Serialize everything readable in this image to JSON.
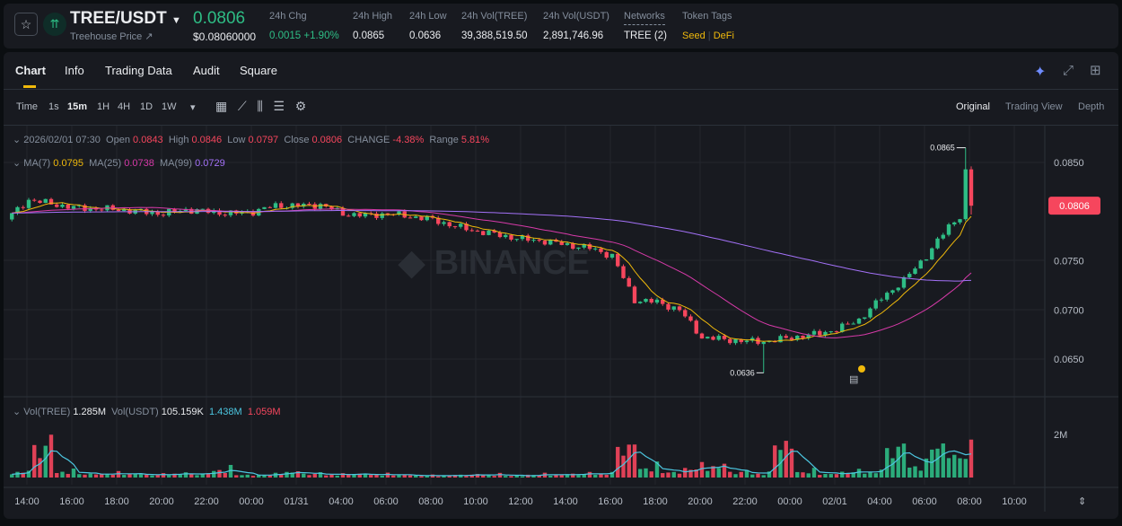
{
  "header": {
    "pair": "TREE/USDT",
    "subtitle": "Treehouse Price ↗",
    "price": "0.0806",
    "price_usd": "$0.08060000",
    "stats": [
      {
        "label": "24h Chg",
        "value": "0.0015 +1.90%",
        "color": "#2ebd85"
      },
      {
        "label": "24h High",
        "value": "0.0865"
      },
      {
        "label": "24h Low",
        "value": "0.0636"
      },
      {
        "label": "24h Vol(TREE)",
        "value": "39,388,519.50"
      },
      {
        "label": "24h Vol(USDT)",
        "value": "2,891,746.96"
      },
      {
        "label": "Networks",
        "value": "TREE (2)"
      }
    ],
    "token_tags_label": "Token Tags",
    "tags": [
      "Seed",
      "DeFi"
    ],
    "tag_sep": "|"
  },
  "tabs": [
    "Chart",
    "Info",
    "Trading Data",
    "Audit",
    "Square"
  ],
  "intervals": [
    "Time",
    "1s",
    "15m",
    "1H",
    "4H",
    "1D",
    "1W"
  ],
  "active_interval": "15m",
  "views": [
    "Original",
    "Trading View",
    "Depth"
  ],
  "ohlc": {
    "date": "2026/02/01 07:30",
    "open_l": "Open",
    "open": "0.0843",
    "high_l": "High",
    "high": "0.0846",
    "low_l": "Low",
    "low": "0.0797",
    "close_l": "Close",
    "close": "0.0806",
    "chg_l": "CHANGE",
    "chg": "-4.38%",
    "range_l": "Range",
    "range": "5.81%"
  },
  "ma": {
    "ma7_l": "MA(7)",
    "ma7": "0.0795",
    "ma25_l": "MA(25)",
    "ma25": "0.0738",
    "ma99_l": "MA(99)",
    "ma99": "0.0729"
  },
  "vol": {
    "l1": "Vol(TREE)",
    "v1": "1.285M",
    "l2": "Vol(USDT)",
    "v2": "105.159K",
    "v3": "1.438M",
    "v4": "1.059M"
  },
  "colors": {
    "up": "#2ebd85",
    "down": "#f6465d",
    "ma7": "#f0b90b",
    "ma25": "#d63aa8",
    "ma99": "#a371f7"
  },
  "chart_data": {
    "type": "candlestick",
    "interval": "15m",
    "y_ticks": [
      "0.0850",
      "0.0750",
      "0.0700",
      "0.0650"
    ],
    "ylim": [
      0.062,
      0.087
    ],
    "x_ticks": [
      "14:00",
      "16:00",
      "18:00",
      "20:00",
      "22:00",
      "00:00",
      "01/31",
      "04:00",
      "06:00",
      "08:00",
      "10:00",
      "12:00",
      "14:00",
      "16:00",
      "18:00",
      "20:00",
      "22:00",
      "00:00",
      "02/01",
      "04:00",
      "06:00",
      "08:00",
      "10:00"
    ],
    "current_price": "0.0806",
    "high_mark": "0.0865",
    "low_mark": "0.0636",
    "vol_tick": "2M",
    "hourly_closes": [
      0.0792,
      0.0812,
      0.0808,
      0.0804,
      0.0803,
      0.0802,
      0.08,
      0.0798,
      0.0802,
      0.08,
      0.0798,
      0.08,
      0.0806,
      0.0806,
      0.0807,
      0.0798,
      0.0796,
      0.0798,
      0.0795,
      0.0792,
      0.0785,
      0.078,
      0.0776,
      0.0772,
      0.077,
      0.0766,
      0.0763,
      0.0755,
      0.071,
      0.0708,
      0.07,
      0.0672,
      0.067,
      0.0668,
      0.0668,
      0.0672,
      0.0675,
      0.068,
      0.069,
      0.0712,
      0.073,
      0.0755,
      0.0785,
      0.0806
    ],
    "hourly_volume_m": [
      0.3,
      1.7,
      0.3,
      0.2,
      0.2,
      0.2,
      0.15,
      0.2,
      0.2,
      0.4,
      0.15,
      0.15,
      0.3,
      0.2,
      0.15,
      0.2,
      0.15,
      0.15,
      0.1,
      0.1,
      0.15,
      0.15,
      0.1,
      0.15,
      0.15,
      0.2,
      0.2,
      1.7,
      0.5,
      0.3,
      0.5,
      0.6,
      0.3,
      0.2,
      1.9,
      0.3,
      0.2,
      0.3,
      0.3,
      1.6,
      0.6,
      1.8,
      1.2,
      3.2
    ]
  }
}
